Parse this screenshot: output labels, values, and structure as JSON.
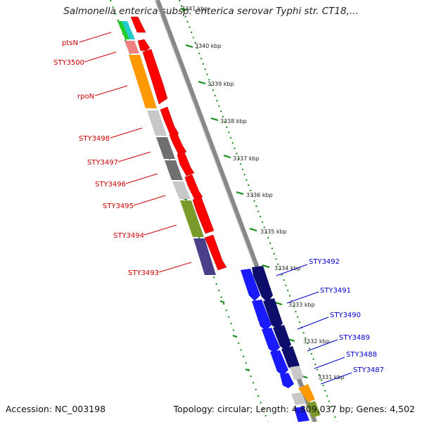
{
  "title": "Salmonella enterica subsp. enterica serovar Typhi str. CT18,...",
  "footer": {
    "accession": "Accession: NC_003198",
    "summary": "Topology: circular; Length: 4,809,037 bp; Genes: 4,502"
  },
  "ticks": [
    "3341 kbp",
    "3340 kbp",
    "3339 kbp",
    "3338 kbp",
    "3337 kbp",
    "3336 kbp",
    "3335 kbp",
    "3334 kbp",
    "3333 kbp",
    "3332 kbp",
    "3331 kbp"
  ],
  "genes_left": [
    "ptsN",
    "STY3500",
    "rpoN",
    "STY3498",
    "STY3497",
    "STY3496",
    "STY3495",
    "STY3494",
    "STY3493"
  ],
  "genes_right": [
    "STY3492",
    "STY3491",
    "STY3490",
    "STY3489",
    "STY3488",
    "STY3487"
  ],
  "colors": {
    "forward": "#ff0000",
    "reverse_blue": "#1a1aff",
    "reverse_navy": "#0d0d6b",
    "left_label": "#cc0000",
    "right_label": "#0000cc",
    "backbone": "#888888",
    "ruler": "#118811"
  }
}
